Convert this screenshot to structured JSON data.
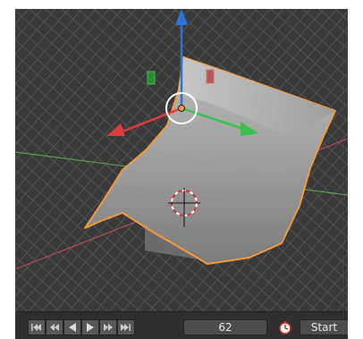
{
  "viewport": {
    "background": "#393939",
    "grid_color": "#545454",
    "axis_x_color": "#b04a55",
    "axis_y_color": "#5f9d4f",
    "selection_outline_color": "#f39a3a",
    "gizmo": {
      "z_axis_color": "#2c73d8",
      "x_axis_color": "#e13a3a",
      "y_axis_color": "#38c24a"
    }
  },
  "timeline": {
    "buttons": [
      {
        "name": "jump-to-start-icon"
      },
      {
        "name": "previous-keyframe-icon"
      },
      {
        "name": "play-reverse-icon"
      },
      {
        "name": "play-icon"
      },
      {
        "name": "next-keyframe-icon"
      },
      {
        "name": "jump-to-end-icon"
      }
    ],
    "current_frame": "62",
    "clock_icon": "stopwatch-icon",
    "start_label": "Start"
  }
}
